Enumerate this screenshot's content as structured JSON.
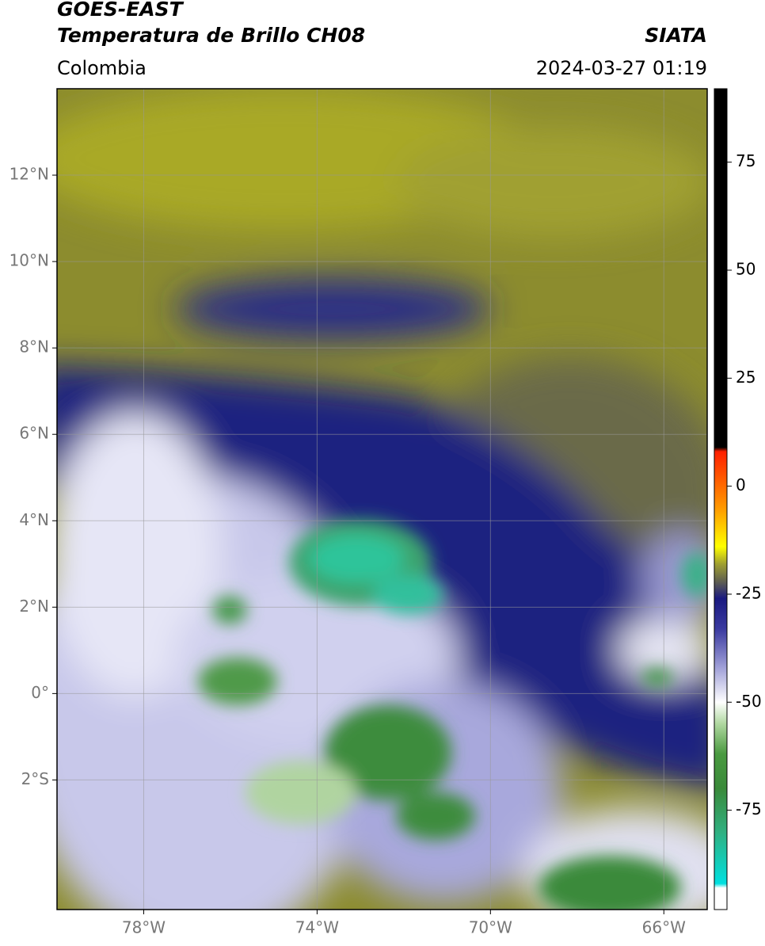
{
  "header": {
    "title": "GOES-EAST",
    "subtitle": "Temperatura de Brillo CH08",
    "source": "SIATA",
    "region": "Colombia",
    "datetime": "2024-03-27 01:19"
  },
  "map": {
    "lon_range": [
      -80,
      -65
    ],
    "lat_range": [
      -5,
      14
    ],
    "lon_ticks": [
      {
        "value": -78,
        "label": "78°W"
      },
      {
        "value": -74,
        "label": "74°W"
      },
      {
        "value": -70,
        "label": "70°W"
      },
      {
        "value": -66,
        "label": "66°W"
      }
    ],
    "lat_ticks": [
      {
        "value": 12,
        "label": "12°N"
      },
      {
        "value": 10,
        "label": "10°N"
      },
      {
        "value": 8,
        "label": "8°N"
      },
      {
        "value": 6,
        "label": "6°N"
      },
      {
        "value": 4,
        "label": "4°N"
      },
      {
        "value": 2,
        "label": "2°N"
      },
      {
        "value": 0,
        "label": "0°"
      },
      {
        "value": -2,
        "label": "2°S"
      }
    ],
    "grid": true
  },
  "colorbar": {
    "range": [
      -98,
      92
    ],
    "ticks": [
      75,
      50,
      25,
      0,
      -25,
      -50,
      -75
    ],
    "stops": [
      {
        "value": 92,
        "color": "#000000"
      },
      {
        "value": 9,
        "color": "#000000"
      },
      {
        "value": 8,
        "color": "#ff2000"
      },
      {
        "value": -5,
        "color": "#ff9900"
      },
      {
        "value": -14,
        "color": "#ffff00"
      },
      {
        "value": -18,
        "color": "#a0a030"
      },
      {
        "value": -22,
        "color": "#606050"
      },
      {
        "value": -26,
        "color": "#1a1a80"
      },
      {
        "value": -33,
        "color": "#3a3aa0"
      },
      {
        "value": -42,
        "color": "#a0a0d8"
      },
      {
        "value": -50,
        "color": "#ffffff"
      },
      {
        "value": -55,
        "color": "#b0d8a0"
      },
      {
        "value": -62,
        "color": "#4a9a40"
      },
      {
        "value": -70,
        "color": "#3a8a3a"
      },
      {
        "value": -80,
        "color": "#30b080"
      },
      {
        "value": -92,
        "color": "#00e0e0"
      },
      {
        "value": -93,
        "color": "#ffffff"
      },
      {
        "value": -98,
        "color": "#ffffff"
      }
    ]
  }
}
